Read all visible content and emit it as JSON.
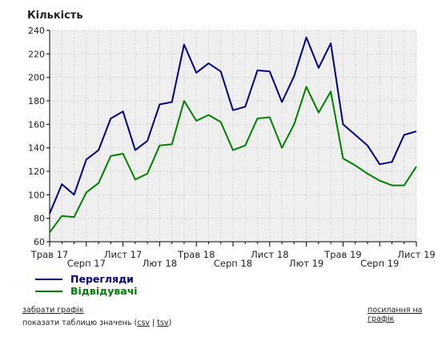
{
  "chart_data": {
    "type": "line",
    "title": "",
    "ylabel": "Кількість",
    "xlabel": "",
    "ylim": [
      60,
      240
    ],
    "yticks": [
      60,
      80,
      100,
      120,
      140,
      160,
      180,
      200,
      220,
      240
    ],
    "grid": true,
    "legend_position": "bottom-left",
    "x_tick_labels": [
      {
        "label": "Трав 17",
        "row": 1
      },
      {
        "label": "Серп 17",
        "row": 2
      },
      {
        "label": "Лист 17",
        "row": 1
      },
      {
        "label": "Лют 18",
        "row": 2
      },
      {
        "label": "Трав 18",
        "row": 1
      },
      {
        "label": "Серп 18",
        "row": 2
      },
      {
        "label": "Лист 18",
        "row": 1
      },
      {
        "label": "Лют 19",
        "row": 2
      },
      {
        "label": "Трав 19",
        "row": 1
      },
      {
        "label": "Серп 19",
        "row": 2
      },
      {
        "label": "Лист 19",
        "row": 1
      }
    ],
    "x_months": [
      "05.2017",
      "06.2017",
      "07.2017",
      "08.2017",
      "09.2017",
      "10.2017",
      "11.2017",
      "12.2017",
      "01.2018",
      "02.2018",
      "03.2018",
      "04.2018",
      "05.2018",
      "06.2018",
      "07.2018",
      "08.2018",
      "09.2018",
      "10.2018",
      "11.2018",
      "12.2018",
      "01.2019",
      "02.2019",
      "03.2019",
      "04.2019",
      "05.2019",
      "06.2019",
      "07.2019",
      "08.2019",
      "09.2019",
      "10.2019",
      "11.2019"
    ],
    "series": [
      {
        "name": "Перегляди",
        "color": "#000080",
        "values": [
          84,
          109,
          100,
          130,
          138,
          165,
          171,
          138,
          146,
          177,
          179,
          228,
          204,
          212,
          205,
          172,
          175,
          206,
          205,
          179,
          201,
          234,
          208,
          229,
          160,
          151,
          142,
          126,
          128,
          151,
          154
        ]
      },
      {
        "name": "Відвідувачі",
        "color": "#008000",
        "values": [
          68,
          82,
          81,
          102,
          110,
          133,
          135,
          113,
          118,
          142,
          143,
          180,
          163,
          168,
          162,
          138,
          142,
          165,
          166,
          140,
          160,
          192,
          170,
          188,
          131,
          125,
          118,
          112,
          108,
          108,
          124
        ]
      }
    ]
  },
  "links": {
    "download": "забрати графік",
    "table_prefix": "показати таблицю значень (",
    "csv": "csv",
    "separator": " | ",
    "tsv": "tsv",
    "table_suffix": ")",
    "graph_link": "посилання на графік"
  }
}
